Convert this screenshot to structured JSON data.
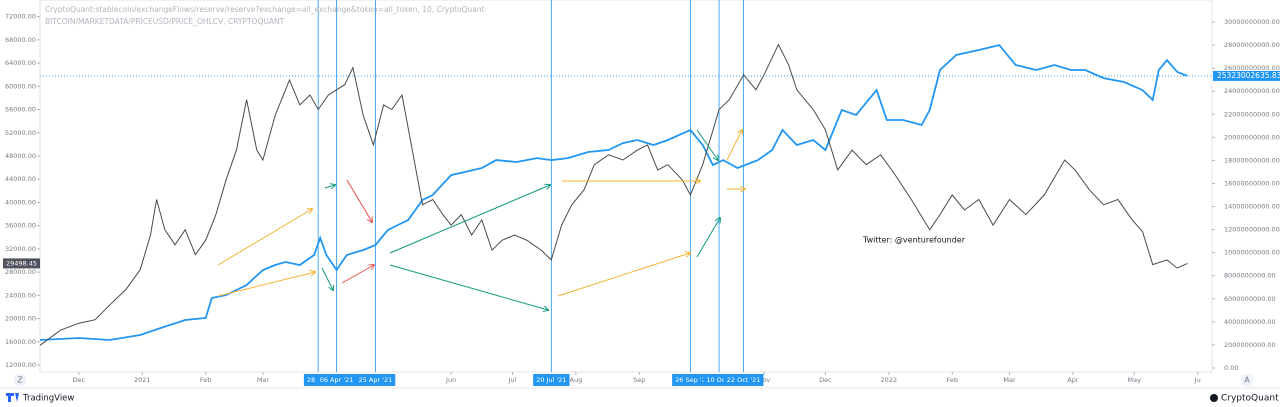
{
  "chart_data": {
    "type": "line",
    "annotation": "Twitter: @venturefounder",
    "xlim": [
      "2020-11-12",
      "2022-06-08"
    ],
    "xticks": [
      {
        "value": "2020-12-01",
        "label": "Dec"
      },
      {
        "value": "2021-01-01",
        "label": "2021"
      },
      {
        "value": "2021-02-01",
        "label": "Feb"
      },
      {
        "value": "2021-03-01",
        "label": "Mar"
      },
      {
        "value": "2021-06-01",
        "label": "Jun"
      },
      {
        "value": "2021-07-01",
        "label": "Jul"
      },
      {
        "value": "2021-08-01",
        "label": "Aug"
      },
      {
        "value": "2021-09-01",
        "label": "Sep"
      },
      {
        "value": "2021-11-01",
        "label": "Nov"
      },
      {
        "value": "2021-12-01",
        "label": "Dec"
      },
      {
        "value": "2022-01-01",
        "label": "2022"
      },
      {
        "value": "2022-02-01",
        "label": "Feb"
      },
      {
        "value": "2022-03-01",
        "label": "Mar"
      },
      {
        "value": "2022-04-01",
        "label": "Apr"
      },
      {
        "value": "2022-05-01",
        "label": "May"
      },
      {
        "value": "2022-06-01",
        "label": "Ju"
      }
    ],
    "ylim": [
      10800,
      74000
    ],
    "yticks": [
      {
        "value": 72000,
        "label": "72000.00"
      },
      {
        "value": 68000,
        "label": "68000.00"
      },
      {
        "value": 64000,
        "label": "64000.00"
      },
      {
        "value": 60000,
        "label": "60000.00"
      },
      {
        "value": 56000,
        "label": "56000.00"
      },
      {
        "value": 52000,
        "label": "52000.00"
      },
      {
        "value": 48000,
        "label": "48000.00"
      },
      {
        "value": 44000,
        "label": "44000.00"
      },
      {
        "value": 40000,
        "label": "40000.00"
      },
      {
        "value": 36000,
        "label": "36000.00"
      },
      {
        "value": 32000,
        "label": "32000.00"
      },
      {
        "value": 28000,
        "label": "28000.00"
      },
      {
        "value": 24000,
        "label": "24000.00"
      },
      {
        "value": 20000,
        "label": "20000.00"
      },
      {
        "value": 16000,
        "label": "16000.00"
      },
      {
        "value": 12000,
        "label": "12000.00"
      }
    ],
    "y2lim": [
      -347000000,
      31475000000
    ],
    "y2ticks": [
      {
        "value": 30000000000,
        "label": "30000000000.00"
      },
      {
        "value": 28000000000,
        "label": "28000000000.00"
      },
      {
        "value": 26000000000,
        "label": "26000000000.00"
      },
      {
        "value": 24000000000,
        "label": "24000000000.00"
      },
      {
        "value": 22000000000,
        "label": "22000000000.00"
      },
      {
        "value": 20000000000,
        "label": "20000000000.00"
      },
      {
        "value": 18000000000,
        "label": "18000000000.00"
      },
      {
        "value": 16000000000,
        "label": "16000000000.00"
      },
      {
        "value": 14000000000,
        "label": "14000000000.00"
      },
      {
        "value": 12000000000,
        "label": "12000000000.00"
      },
      {
        "value": 10000000000,
        "label": "10000000000.00"
      },
      {
        "value": 8000000000,
        "label": "8000000000.00"
      },
      {
        "value": 6000000000,
        "label": "6000000000.00"
      },
      {
        "value": 4000000000,
        "label": "4000000000.00"
      },
      {
        "value": 2000000000,
        "label": "2000000000.00"
      },
      {
        "value": 0,
        "label": "0.00"
      }
    ],
    "markers": [
      {
        "x": "2021-03-28",
        "label": "28 Mar"
      },
      {
        "x": "2021-04-06",
        "label": "06 Apr '21"
      },
      {
        "x": "2021-04-25",
        "label": "25 Apr '21"
      },
      {
        "x": "2021-07-20",
        "label": "20 Jul '21"
      },
      {
        "x": "2021-09-26",
        "label": "26 Sep '2"
      },
      {
        "x": "2021-10-10",
        "label": "10 Oct '"
      },
      {
        "x": "2021-10-22",
        "label": "22 Oct '21"
      }
    ],
    "series": [
      {
        "name": "CryptoQuant:stablecoin/exchangeFlows/reserve/reserve?exchange=all_exchange&token=all_token, 10, CryptoQuant",
        "color": "#2196f3",
        "axis": "y2",
        "x": [
          "2020-11-12",
          "2020-12-01",
          "2020-12-16",
          "2020-12-31",
          "2021-01-10",
          "2021-01-22",
          "2021-02-01",
          "2021-02-04",
          "2021-02-11",
          "2021-02-21",
          "2021-03-01",
          "2021-03-07",
          "2021-03-12",
          "2021-03-19",
          "2021-03-26",
          "2021-03-29",
          "2021-04-01",
          "2021-04-06",
          "2021-04-11",
          "2021-04-19",
          "2021-04-25",
          "2021-05-01",
          "2021-05-06",
          "2021-05-11",
          "2021-05-18",
          "2021-05-23",
          "2021-06-01",
          "2021-06-08",
          "2021-06-16",
          "2021-06-23",
          "2021-07-03",
          "2021-07-13",
          "2021-07-20",
          "2021-07-28",
          "2021-08-07",
          "2021-08-17",
          "2021-08-24",
          "2021-08-31",
          "2021-09-08",
          "2021-09-15",
          "2021-09-26",
          "2021-10-02",
          "2021-10-07",
          "2021-10-12",
          "2021-10-19",
          "2021-10-29",
          "2021-11-05",
          "2021-11-10",
          "2021-11-17",
          "2021-11-25",
          "2021-12-01",
          "2021-12-09",
          "2021-12-16",
          "2021-12-26",
          "2021-12-31",
          "2022-01-08",
          "2022-01-17",
          "2022-01-21",
          "2022-01-26",
          "2022-02-03",
          "2022-02-14",
          "2022-02-24",
          "2022-03-04",
          "2022-03-14",
          "2022-03-23",
          "2022-03-31",
          "2022-04-07",
          "2022-04-16",
          "2022-04-26",
          "2022-05-05",
          "2022-05-10",
          "2022-05-13",
          "2022-05-17",
          "2022-05-22",
          "2022-05-27"
        ],
        "values": [
          2430000000,
          2600000000,
          2430000000,
          2860000000,
          3470000000,
          4160000000,
          4340000000,
          6070000000,
          6330000000,
          7200000000,
          8500000000,
          8930000000,
          9190000000,
          8930000000,
          9800000000,
          11270000000,
          9800000000,
          8500000000,
          9800000000,
          10230000000,
          10660000000,
          11960000000,
          12400000000,
          12830000000,
          14570000000,
          15000000000,
          16730000000,
          17000000000,
          17340000000,
          18030000000,
          17860000000,
          18200000000,
          18030000000,
          18200000000,
          18730000000,
          18900000000,
          19500000000,
          19770000000,
          19340000000,
          19770000000,
          20640000000,
          19340000000,
          17600000000,
          18030000000,
          17340000000,
          18030000000,
          18900000000,
          20640000000,
          19340000000,
          19770000000,
          18900000000,
          22370000000,
          21940000000,
          24100000000,
          21500000000,
          21500000000,
          21070000000,
          22370000000,
          25840000000,
          27140000000,
          27570000000,
          28000000000,
          26270000000,
          25840000000,
          26270000000,
          25840000000,
          25840000000,
          25140000000,
          24800000000,
          24100000000,
          23240000000,
          25840000000,
          26700000000,
          25670000000,
          25323002635.83
        ]
      },
      {
        "name": "BITCOIN/MARKETDATA/PRICEUSD/PRICE_OHLCV, CRYPTOQUANT",
        "color": "#4a4a4a",
        "axis": "y",
        "x": [
          "2020-11-12",
          "2020-11-22",
          "2020-12-01",
          "2020-12-09",
          "2020-12-16",
          "2020-12-24",
          "2020-12-31",
          "2021-01-05",
          "2021-01-08",
          "2021-01-12",
          "2021-01-17",
          "2021-01-22",
          "2021-01-27",
          "2021-02-01",
          "2021-02-06",
          "2021-02-11",
          "2021-02-16",
          "2021-02-21",
          "2021-02-26",
          "2021-03-01",
          "2021-03-07",
          "2021-03-14",
          "2021-03-19",
          "2021-03-24",
          "2021-03-28",
          "2021-04-02",
          "2021-04-10",
          "2021-04-14",
          "2021-04-19",
          "2021-04-24",
          "2021-04-29",
          "2021-05-03",
          "2021-05-08",
          "2021-05-13",
          "2021-05-18",
          "2021-05-23",
          "2021-05-28",
          "2021-06-01",
          "2021-06-06",
          "2021-06-11",
          "2021-06-16",
          "2021-06-21",
          "2021-06-26",
          "2021-07-02",
          "2021-07-08",
          "2021-07-15",
          "2021-07-20",
          "2021-07-25",
          "2021-07-30",
          "2021-08-05",
          "2021-08-10",
          "2021-08-17",
          "2021-08-24",
          "2021-08-31",
          "2021-09-05",
          "2021-09-10",
          "2021-09-15",
          "2021-09-22",
          "2021-09-26",
          "2021-10-02",
          "2021-10-10",
          "2021-10-15",
          "2021-10-22",
          "2021-10-28",
          "2021-11-01",
          "2021-11-08",
          "2021-11-13",
          "2021-11-17",
          "2021-11-25",
          "2021-12-01",
          "2021-12-07",
          "2021-12-14",
          "2021-12-21",
          "2021-12-28",
          "2022-01-04",
          "2022-01-12",
          "2022-01-21",
          "2022-01-26",
          "2022-02-01",
          "2022-02-07",
          "2022-02-14",
          "2022-02-21",
          "2022-03-01",
          "2022-03-09",
          "2022-03-18",
          "2022-03-28",
          "2022-04-02",
          "2022-04-09",
          "2022-04-16",
          "2022-04-23",
          "2022-04-30",
          "2022-05-05",
          "2022-05-10",
          "2022-05-17",
          "2022-05-22",
          "2022-05-27"
        ],
        "values": [
          15400,
          18000,
          19200,
          19800,
          22300,
          25000,
          28400,
          34400,
          40500,
          35300,
          32700,
          35300,
          31000,
          33500,
          37900,
          43900,
          49000,
          57700,
          49000,
          47300,
          55000,
          61100,
          56800,
          58500,
          56000,
          58500,
          60300,
          63200,
          55000,
          49900,
          56800,
          56000,
          58500,
          49000,
          39600,
          40500,
          37900,
          36100,
          37900,
          34400,
          37000,
          31800,
          33500,
          34400,
          33500,
          31800,
          30100,
          36100,
          39600,
          42200,
          46500,
          48200,
          47300,
          49000,
          49900,
          45600,
          46500,
          43900,
          41300,
          46500,
          56000,
          57700,
          62000,
          59400,
          62000,
          67200,
          63700,
          59400,
          56000,
          52500,
          45600,
          49000,
          46500,
          48200,
          44800,
          40500,
          35300,
          37900,
          41300,
          38700,
          40500,
          36100,
          40500,
          37900,
          41300,
          47300,
          45600,
          42200,
          39600,
          40500,
          37000,
          35000,
          29300,
          30100,
          28700,
          29498.45
        ]
      }
    ],
    "buttons": [
      "Z",
      "A"
    ],
    "footer": {
      "left": "TradingView",
      "right": "CryptoQuant"
    }
  }
}
